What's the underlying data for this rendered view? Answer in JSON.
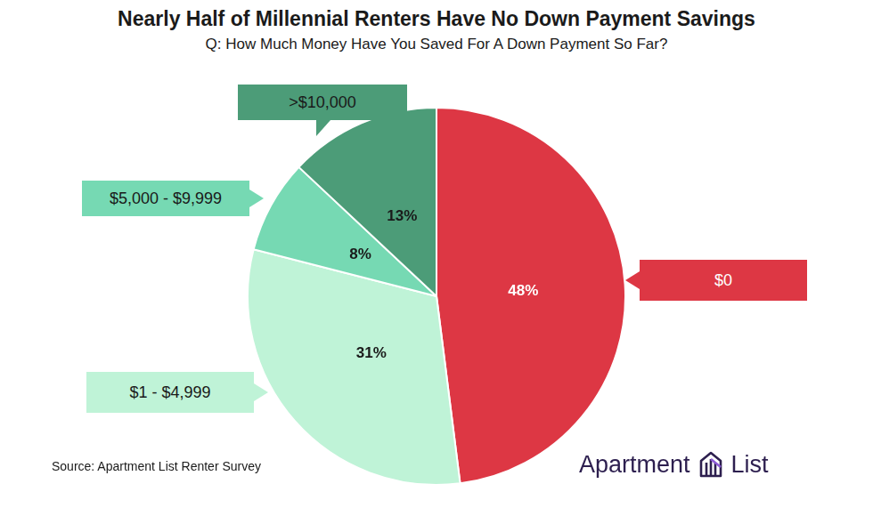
{
  "chart_data": {
    "type": "pie",
    "title": "Nearly Half of Millennial Renters Have No Down Payment Savings",
    "subtitle": "Q: How Much Money Have You Saved For A Down Payment So Far?",
    "categories": [
      "$0",
      "$1 - $4,999",
      "$5,000 - $9,999",
      ">$10,000"
    ],
    "values": [
      48,
      31,
      8,
      13
    ],
    "value_labels": [
      "48%",
      "31%",
      "8%",
      "13%"
    ],
    "colors": [
      "#dd3744",
      "#bff3d7",
      "#76d9b3",
      "#4c9c78"
    ],
    "data_labels": true,
    "source": "Source: Apartment List Renter Survey",
    "logo": "Apartment List"
  }
}
